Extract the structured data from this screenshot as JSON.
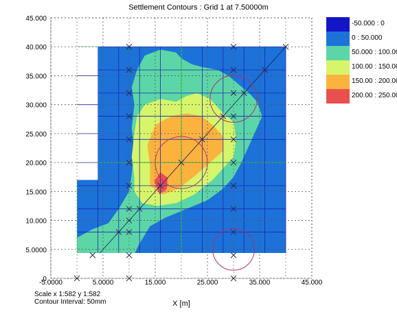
{
  "title": "Settlement Contours : Grid 1 at 7.50000m",
  "footer": {
    "scale": "Scale x 1:582  y 1:582",
    "interval": "Contour Interval: 50mm"
  },
  "legend": [
    {
      "label": "-50.000 : 0",
      "color": "#1515c8"
    },
    {
      "label": "0 : 50.000",
      "color": "#1c72d8"
    },
    {
      "label": "50.000 : 100.00",
      "color": "#5cd6a6"
    },
    {
      "label": "100.00 : 150.00",
      "color": "#d6f56a"
    },
    {
      "label": "150.00 : 200.00",
      "color": "#fbb33e"
    },
    {
      "label": "200.00 : 250.00",
      "color": "#e94f4f"
    }
  ],
  "chart_data": {
    "type": "heatmap",
    "title": "Settlement Contours : Grid 1 at 7.50000m",
    "xlabel": "X [m]",
    "ylabel": "",
    "xlim": [
      -5,
      45
    ],
    "ylim": [
      0,
      45
    ],
    "x_ticks": [
      "-5.0000",
      "5.0000",
      "15.000",
      "25.000",
      "35.000",
      "45.000"
    ],
    "x_tick_values": [
      -5,
      5,
      15,
      25,
      35,
      45
    ],
    "y_ticks": [
      "45.000",
      "40.000",
      "35.000",
      "30.000",
      "25.000",
      "20.000",
      "15.000",
      "10.000",
      "5.0000",
      ".0"
    ],
    "y_tick_values": [
      45,
      40,
      35,
      30,
      25,
      20,
      15,
      10,
      5,
      0
    ],
    "grid": "dotted",
    "legend_placement": "right",
    "contour_levels": [
      -50,
      0,
      50,
      100,
      150,
      200,
      250
    ],
    "contour_units": "mm",
    "grid_extent": {
      "x": [
        0,
        40
      ],
      "y": [
        0,
        40
      ]
    },
    "footings": [
      {
        "x": 20,
        "y": 20,
        "r": 5
      },
      {
        "x": 30,
        "y": 31,
        "r": 4.5
      },
      {
        "x": 30,
        "y": 5,
        "r": 4
      }
    ],
    "points": [
      [
        0,
        0
      ],
      [
        10,
        0
      ],
      [
        30,
        0
      ],
      [
        40,
        40
      ],
      [
        10,
        40
      ],
      [
        30,
        40
      ],
      [
        3,
        4
      ],
      [
        8,
        8
      ],
      [
        10,
        10
      ],
      [
        12,
        12
      ],
      [
        16,
        16
      ],
      [
        20,
        20
      ],
      [
        24,
        24
      ],
      [
        28,
        28
      ],
      [
        32,
        32
      ],
      [
        36,
        36
      ],
      [
        10,
        4
      ],
      [
        10,
        8
      ],
      [
        10,
        12
      ],
      [
        10,
        16
      ],
      [
        10,
        20
      ],
      [
        10,
        24
      ],
      [
        10,
        28
      ],
      [
        10,
        32
      ],
      [
        10,
        36
      ],
      [
        30,
        4
      ],
      [
        30,
        8
      ],
      [
        30,
        12
      ],
      [
        30,
        16
      ],
      [
        30,
        20
      ],
      [
        30,
        24
      ],
      [
        30,
        28
      ],
      [
        30,
        32
      ],
      [
        30,
        36
      ]
    ]
  }
}
